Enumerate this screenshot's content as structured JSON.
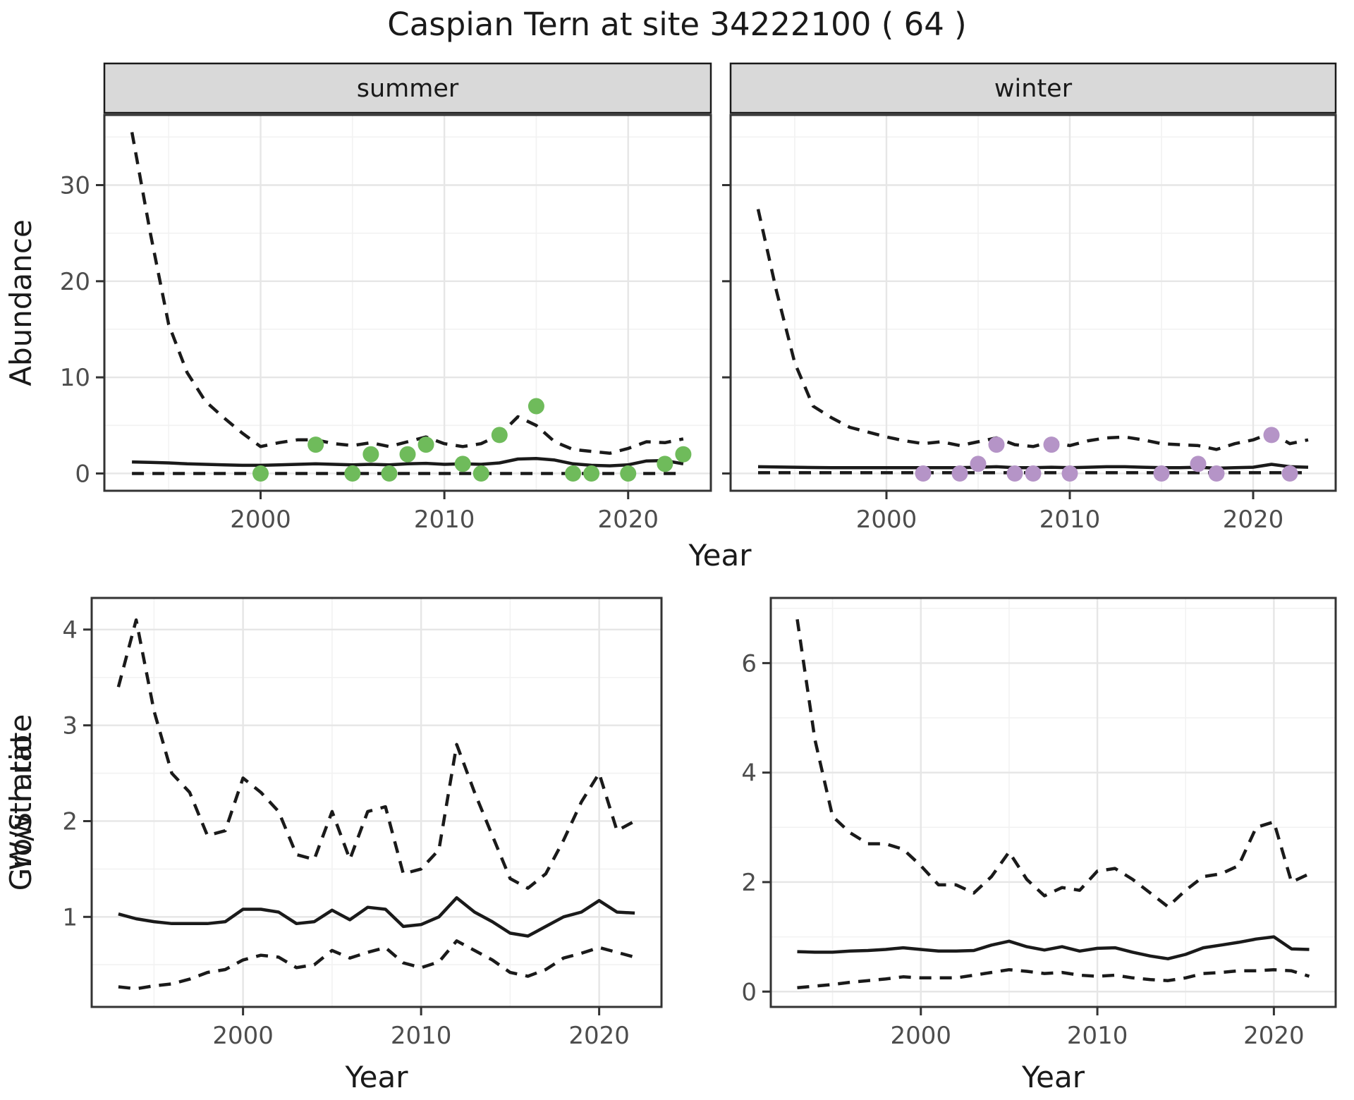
{
  "title": "Caspian Tern at site 34222100 ( 64 )",
  "colors": {
    "line": "#1a1a1a",
    "grid_major": "#e6e6e6",
    "grid_minor": "#f2f2f2",
    "panel_border": "#333333",
    "strip_bg": "#d9d9d9",
    "strip_border": "#1a1a1a",
    "tick_label": "#4d4d4d",
    "summer_point": "#6fbb5b",
    "winter_point": "#b594c7"
  },
  "chart_data": {
    "type": "line",
    "shared": {
      "top_ylabel": "Abundance",
      "top_xlabel": "Year"
    },
    "panels": [
      {
        "id": "summer",
        "strip_label": "summer",
        "xlim": [
          1991.5,
          2024.5
        ],
        "ylim": [
          -1.8,
          37.3
        ],
        "xticks": [
          2000,
          2010,
          2020
        ],
        "minor_xticks": [
          1995,
          2005,
          2015
        ],
        "yticks": [
          0,
          10,
          20,
          30
        ],
        "minor_yticks": [
          5,
          15,
          25,
          35
        ],
        "show_ytick_labels": true,
        "years": [
          1993,
          1994,
          1995,
          1996,
          1997,
          1998,
          1999,
          2000,
          2001,
          2002,
          2003,
          2004,
          2005,
          2006,
          2007,
          2008,
          2009,
          2010,
          2011,
          2012,
          2013,
          2014,
          2015,
          2016,
          2017,
          2018,
          2019,
          2020,
          2021,
          2022,
          2023
        ],
        "upper_ci": [
          35.5,
          25,
          15.5,
          10.5,
          7.5,
          5.8,
          4.2,
          2.8,
          3.2,
          3.5,
          3.5,
          3.1,
          2.9,
          3.2,
          2.8,
          3.3,
          3.8,
          3.1,
          2.8,
          3.1,
          4.0,
          5.9,
          5.0,
          3.3,
          2.5,
          2.3,
          2.1,
          2.6,
          3.3,
          3.2,
          3.6
        ],
        "median": [
          1.2,
          1.15,
          1.1,
          1.0,
          0.95,
          0.9,
          0.85,
          0.85,
          0.9,
          0.95,
          1.0,
          0.95,
          0.9,
          0.95,
          0.9,
          1.0,
          1.05,
          0.95,
          1.0,
          0.95,
          1.1,
          1.5,
          1.55,
          1.4,
          1.0,
          0.85,
          0.8,
          0.9,
          1.3,
          1.35,
          1.0
        ],
        "lower_ci": [
          0,
          0,
          0,
          0,
          0,
          0,
          0,
          0,
          0,
          0,
          0,
          0,
          0,
          0,
          0,
          0,
          0,
          0,
          0,
          0,
          0,
          0,
          0,
          0,
          0,
          0,
          0,
          0,
          0,
          0,
          0
        ],
        "observed": [
          [
            2000,
            0
          ],
          [
            2003,
            3
          ],
          [
            2005,
            0
          ],
          [
            2006,
            2
          ],
          [
            2007,
            0
          ],
          [
            2008,
            2
          ],
          [
            2009,
            3
          ],
          [
            2011,
            1
          ],
          [
            2012,
            0
          ],
          [
            2013,
            4
          ],
          [
            2015,
            7
          ],
          [
            2017,
            0
          ],
          [
            2018,
            0
          ],
          [
            2020,
            0
          ],
          [
            2022,
            1
          ],
          [
            2023,
            2
          ]
        ],
        "point_color": "#6fbb5b"
      },
      {
        "id": "winter",
        "strip_label": "winter",
        "xlim": [
          1991.5,
          2024.5
        ],
        "ylim": [
          -1.8,
          37.3
        ],
        "xticks": [
          2000,
          2010,
          2020
        ],
        "minor_xticks": [
          1995,
          2005,
          2015
        ],
        "yticks": [
          0,
          10,
          20,
          30
        ],
        "minor_yticks": [
          5,
          15,
          25,
          35
        ],
        "show_ytick_labels": false,
        "years": [
          1993,
          1994,
          1995,
          1996,
          1997,
          1998,
          1999,
          2000,
          2001,
          2002,
          2003,
          2004,
          2005,
          2006,
          2007,
          2008,
          2009,
          2010,
          2011,
          2012,
          2013,
          2014,
          2015,
          2016,
          2017,
          2018,
          2019,
          2020,
          2021,
          2022,
          2023
        ],
        "upper_ci": [
          27.5,
          19,
          11.5,
          7,
          5.8,
          4.8,
          4.3,
          3.8,
          3.4,
          3.1,
          3.3,
          2.9,
          3.3,
          3.7,
          3.0,
          2.8,
          3.3,
          2.9,
          3.4,
          3.7,
          3.8,
          3.5,
          3.1,
          3.0,
          2.9,
          2.5,
          3.1,
          3.5,
          4.2,
          3.1,
          3.5
        ],
        "median": [
          0.7,
          0.68,
          0.65,
          0.62,
          0.6,
          0.6,
          0.6,
          0.6,
          0.6,
          0.6,
          0.6,
          0.6,
          0.65,
          0.7,
          0.6,
          0.6,
          0.65,
          0.6,
          0.65,
          0.7,
          0.7,
          0.65,
          0.6,
          0.6,
          0.65,
          0.55,
          0.6,
          0.65,
          0.95,
          0.7,
          0.65
        ],
        "lower_ci": [
          0.08,
          0.08,
          0.08,
          0.08,
          0.08,
          0.08,
          0.08,
          0.08,
          0.08,
          0.08,
          0.08,
          0.08,
          0.08,
          0.08,
          0.08,
          0.08,
          0.08,
          0.08,
          0.08,
          0.08,
          0.08,
          0.08,
          0.08,
          0.08,
          0.08,
          0.08,
          0.08,
          0.08,
          0.08,
          0.08,
          0.08
        ],
        "observed": [
          [
            2002,
            0
          ],
          [
            2004,
            0
          ],
          [
            2005,
            1
          ],
          [
            2006,
            3
          ],
          [
            2007,
            0
          ],
          [
            2008,
            0
          ],
          [
            2009,
            3
          ],
          [
            2010,
            0
          ],
          [
            2015,
            0
          ],
          [
            2017,
            1
          ],
          [
            2018,
            0
          ],
          [
            2021,
            4
          ],
          [
            2022,
            0
          ]
        ],
        "point_color": "#b594c7"
      },
      {
        "id": "growth",
        "ylabel": "Growth rate",
        "xlabel": "Year",
        "xlim": [
          1991.5,
          2023.5
        ],
        "ylim": [
          0.06,
          4.33
        ],
        "xticks": [
          2000,
          2010,
          2020
        ],
        "minor_xticks": [
          1995,
          2005,
          2015
        ],
        "yticks": [
          1,
          2,
          3,
          4
        ],
        "minor_yticks": [
          0.5,
          1.5,
          2.5,
          3.5
        ],
        "show_ytick_labels": true,
        "years": [
          1993,
          1994,
          1995,
          1996,
          1997,
          1998,
          1999,
          2000,
          2001,
          2002,
          2003,
          2004,
          2005,
          2006,
          2007,
          2008,
          2009,
          2010,
          2011,
          2012,
          2013,
          2014,
          2015,
          2016,
          2017,
          2018,
          2019,
          2020,
          2021,
          2022
        ],
        "upper_ci": [
          3.4,
          4.1,
          3.15,
          2.5,
          2.3,
          1.85,
          1.9,
          2.45,
          2.3,
          2.1,
          1.65,
          1.6,
          2.1,
          1.6,
          2.1,
          2.15,
          1.45,
          1.5,
          1.7,
          2.8,
          2.3,
          1.85,
          1.4,
          1.3,
          1.45,
          1.8,
          2.2,
          2.5,
          1.9,
          2.0
        ],
        "median": [
          1.03,
          0.98,
          0.95,
          0.93,
          0.93,
          0.93,
          0.95,
          1.08,
          1.08,
          1.05,
          0.93,
          0.95,
          1.07,
          0.97,
          1.1,
          1.08,
          0.9,
          0.92,
          1.0,
          1.2,
          1.05,
          0.95,
          0.83,
          0.8,
          0.9,
          1.0,
          1.05,
          1.17,
          1.05,
          1.04
        ],
        "lower_ci": [
          0.27,
          0.25,
          0.28,
          0.3,
          0.35,
          0.42,
          0.45,
          0.55,
          0.6,
          0.58,
          0.47,
          0.5,
          0.65,
          0.57,
          0.63,
          0.68,
          0.52,
          0.47,
          0.53,
          0.75,
          0.65,
          0.55,
          0.42,
          0.38,
          0.45,
          0.57,
          0.62,
          0.68,
          0.63,
          0.58
        ]
      },
      {
        "id": "ws",
        "ylabel": "W/S ratio",
        "xlabel": "Year",
        "xlim": [
          1991.5,
          2023.5
        ],
        "ylim": [
          -0.28,
          7.19
        ],
        "xticks": [
          2000,
          2010,
          2020
        ],
        "minor_xticks": [
          1995,
          2005,
          2015
        ],
        "yticks": [
          0,
          2,
          4,
          6
        ],
        "minor_yticks": [
          1,
          3,
          5,
          7
        ],
        "show_ytick_labels": true,
        "years": [
          1993,
          1994,
          1995,
          1996,
          1997,
          1998,
          1999,
          2000,
          2001,
          2002,
          2003,
          2004,
          2005,
          2006,
          2007,
          2008,
          2009,
          2010,
          2011,
          2012,
          2013,
          2014,
          2015,
          2016,
          2017,
          2018,
          2019,
          2020,
          2021,
          2022
        ],
        "upper_ci": [
          6.8,
          4.6,
          3.2,
          2.9,
          2.7,
          2.7,
          2.6,
          2.3,
          1.95,
          1.95,
          1.8,
          2.1,
          2.55,
          2.05,
          1.75,
          1.9,
          1.85,
          2.2,
          2.25,
          2.05,
          1.8,
          1.55,
          1.85,
          2.1,
          2.15,
          2.3,
          3.0,
          3.1,
          2.0,
          2.15
        ],
        "median": [
          0.73,
          0.72,
          0.72,
          0.74,
          0.75,
          0.77,
          0.8,
          0.77,
          0.74,
          0.74,
          0.75,
          0.85,
          0.92,
          0.82,
          0.76,
          0.82,
          0.74,
          0.79,
          0.8,
          0.72,
          0.65,
          0.6,
          0.68,
          0.8,
          0.85,
          0.9,
          0.96,
          1.0,
          0.78,
          0.77
        ],
        "lower_ci": [
          0.07,
          0.1,
          0.13,
          0.17,
          0.2,
          0.23,
          0.27,
          0.25,
          0.25,
          0.25,
          0.3,
          0.35,
          0.4,
          0.37,
          0.33,
          0.35,
          0.3,
          0.28,
          0.3,
          0.25,
          0.22,
          0.2,
          0.25,
          0.33,
          0.35,
          0.38,
          0.38,
          0.4,
          0.38,
          0.28
        ]
      }
    ]
  }
}
